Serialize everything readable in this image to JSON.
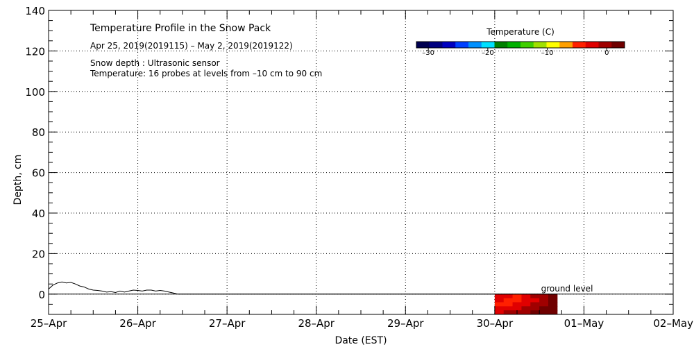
{
  "chart_data": {
    "type": "heatmap",
    "title": "Temperature Profile in the Snow Pack",
    "subtitle": "Apr 25, 2019(2019115) – May  2, 2019(2019122)",
    "notes": [
      "Snow depth : Ultrasonic sensor",
      "Temperature: 16 probes at levels from –10 cm to 90 cm"
    ],
    "xlabel": "Date (EST)",
    "ylabel": "Depth, cm",
    "x_ticks": [
      "25–Apr",
      "26–Apr",
      "27–Apr",
      "28–Apr",
      "29–Apr",
      "30–Apr",
      "01–May",
      "02–May"
    ],
    "xlim": [
      0,
      7
    ],
    "x_unit": "days since 25-Apr",
    "ylim": [
      -10,
      140
    ],
    "y_ticks": [
      0,
      20,
      40,
      60,
      80,
      100,
      120,
      140
    ],
    "grid": true,
    "ground_level_label": "ground level",
    "ground_level": 0,
    "colorbar": {
      "title": "Temperature (C)",
      "range": [
        -32,
        3
      ],
      "ticks": [
        -30,
        -20,
        -10,
        0
      ],
      "colors": [
        "#000050",
        "#000080",
        "#0000c0",
        "#0040ff",
        "#0090ff",
        "#00e0ff",
        "#008000",
        "#00b000",
        "#40d000",
        "#a0e000",
        "#ffff00",
        "#ffa000",
        "#ff2000",
        "#e00000",
        "#a00000",
        "#700000"
      ]
    },
    "snow_depth": {
      "name": "Snow depth",
      "x": [
        0,
        0.05,
        0.1,
        0.15,
        0.2,
        0.25,
        0.3,
        0.35,
        0.4,
        0.45,
        0.5,
        0.55,
        0.6,
        0.65,
        0.7,
        0.75,
        0.8,
        0.85,
        0.9,
        0.95,
        1.0,
        1.05,
        1.1,
        1.15,
        1.2,
        1.25,
        1.3,
        1.35,
        1.4,
        1.45,
        7
      ],
      "values": [
        2.5,
        4.5,
        5.5,
        6.0,
        5.5,
        5.8,
        5.0,
        4.0,
        3.5,
        2.5,
        2.0,
        1.8,
        1.5,
        1.0,
        1.2,
        0.8,
        1.5,
        1.0,
        1.5,
        2.0,
        1.8,
        1.5,
        2.0,
        2.0,
        1.5,
        1.8,
        1.5,
        1.0,
        0.5,
        0,
        0
      ]
    },
    "temperature_block": {
      "x_start": 5.0,
      "x_end": 5.7,
      "depth_top": 0,
      "depth_bottom": -10,
      "columns": [
        [
          2,
          2,
          3,
          2,
          2
        ],
        [
          2,
          3,
          3,
          2,
          1
        ],
        [
          3,
          3,
          2,
          2,
          1
        ],
        [
          2,
          2,
          2,
          1,
          1
        ],
        [
          1,
          2,
          1,
          1,
          0
        ],
        [
          1,
          1,
          1,
          0,
          0
        ],
        [
          0,
          0,
          0,
          0,
          0
        ]
      ]
    }
  }
}
